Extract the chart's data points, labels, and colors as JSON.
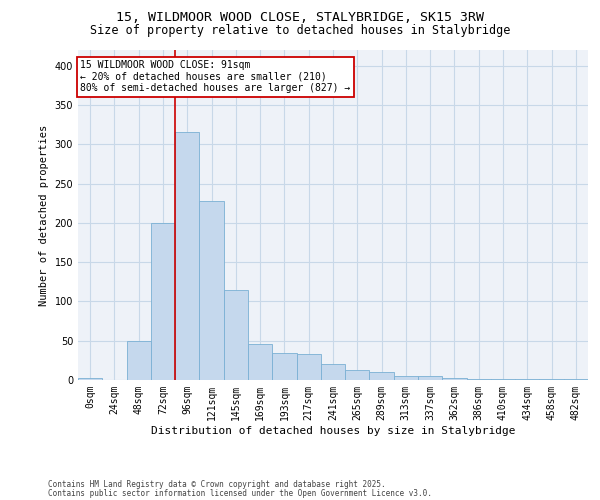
{
  "title1": "15, WILDMOOR WOOD CLOSE, STALYBRIDGE, SK15 3RW",
  "title2": "Size of property relative to detached houses in Stalybridge",
  "xlabel": "Distribution of detached houses by size in Stalybridge",
  "ylabel": "Number of detached properties",
  "categories": [
    "0sqm",
    "24sqm",
    "48sqm",
    "72sqm",
    "96sqm",
    "121sqm",
    "145sqm",
    "169sqm",
    "193sqm",
    "217sqm",
    "241sqm",
    "265sqm",
    "289sqm",
    "313sqm",
    "337sqm",
    "362sqm",
    "386sqm",
    "410sqm",
    "434sqm",
    "458sqm",
    "482sqm"
  ],
  "bar_values": [
    2,
    0,
    50,
    200,
    316,
    228,
    115,
    46,
    34,
    33,
    21,
    13,
    10,
    5,
    5,
    3,
    1,
    1,
    1,
    1,
    1
  ],
  "bar_color": "#c5d8ed",
  "bar_edge_color": "#7ab0d4",
  "vline_color": "#cc0000",
  "annotation_text": "15 WILDMOOR WOOD CLOSE: 91sqm\n← 20% of detached houses are smaller (210)\n80% of semi-detached houses are larger (827) →",
  "annotation_box_color": "#cc0000",
  "annotation_bg_color": "#ffffff",
  "ylim": [
    0,
    420
  ],
  "yticks": [
    0,
    50,
    100,
    150,
    200,
    250,
    300,
    350,
    400
  ],
  "bg_color": "#eef2f8",
  "grid_color": "#c8d8e8",
  "footer1": "Contains HM Land Registry data © Crown copyright and database right 2025.",
  "footer2": "Contains public sector information licensed under the Open Government Licence v3.0.",
  "title_fontsize": 9.5,
  "subtitle_fontsize": 8.5,
  "tick_fontsize": 7,
  "ylabel_fontsize": 7.5,
  "xlabel_fontsize": 8,
  "ann_fontsize": 7,
  "footer_fontsize": 5.5
}
